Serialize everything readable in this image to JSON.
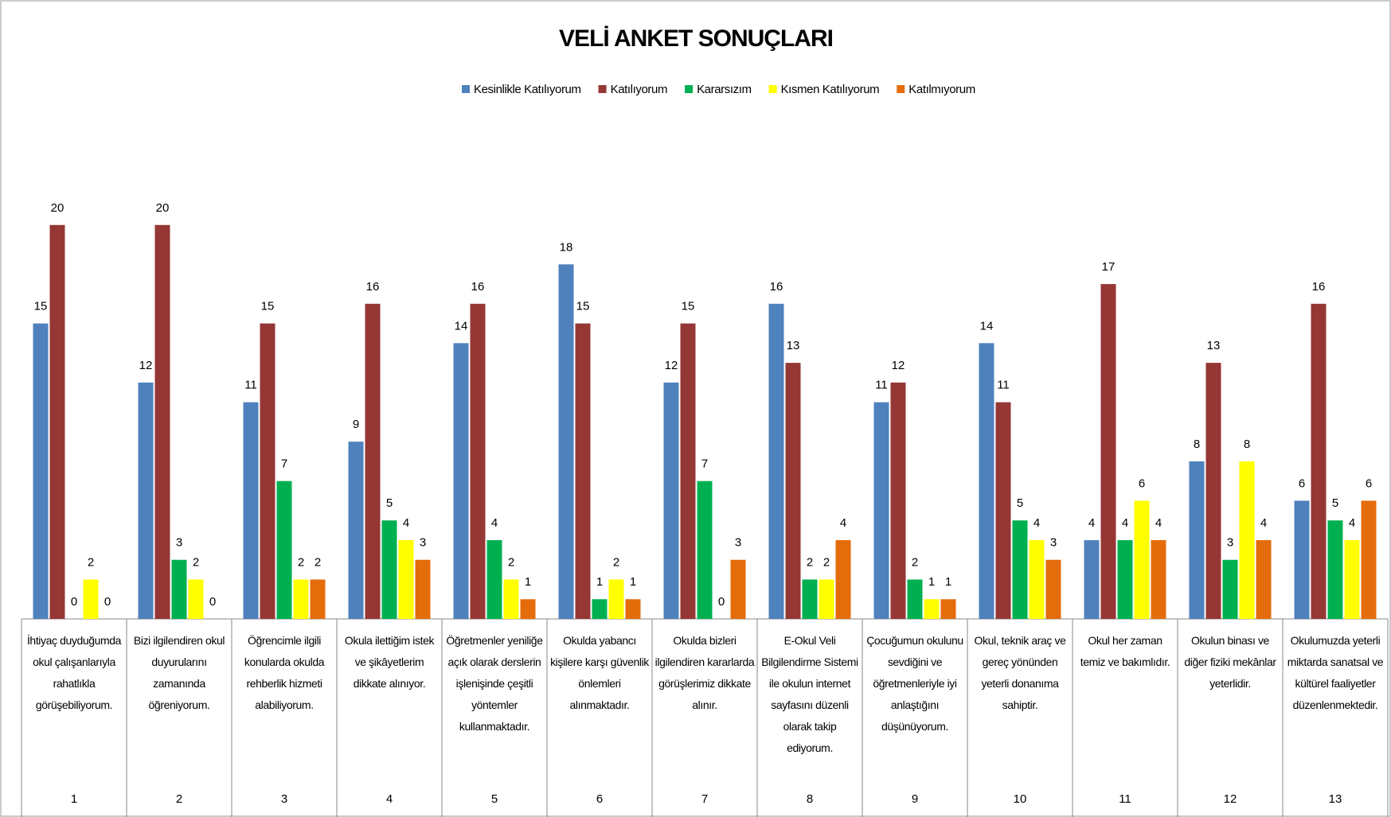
{
  "chart_data": {
    "type": "bar",
    "title": "VELİ ANKET SONUÇLARI",
    "categories": [
      "1",
      "2",
      "3",
      "4",
      "5",
      "6",
      "7",
      "8",
      "9",
      "10",
      "11",
      "12",
      "13"
    ],
    "descriptions": [
      "İhtiyaç duyduğumda okul çalışanlarıyla rahatlıkla görüşebiliyorum.",
      "Bizi ilgilendiren okul duyurularını zamanında öğreniyorum.",
      "Öğrencimle ilgili konularda okulda rehberlik hizmeti alabiliyorum.",
      "Okula ilettiğim istek ve şikâyetlerim dikkate alınıyor.",
      "Öğretmenler yeniliğe açık olarak derslerin işlenişinde çeşitli yöntemler kullanmaktadır.",
      "Okulda yabancı kişilere karşı güvenlik önlemleri alınmaktadır.",
      "Okulda bizleri ilgilendiren kararlarda görüşlerimiz dikkate alınır.",
      "E-Okul Veli Bilgilendirme Sistemi ile okulun internet sayfasını düzenli olarak takip ediyorum.",
      "Çocuğumun okulunu sevdiğini ve öğretmenleriyle iyi anlaştığını düşünüyorum.",
      "Okul, teknik araç ve gereç yönünden yeterli donanıma sahiptir.",
      "Okul her zaman temiz ve bakımlıdır.",
      "Okulun binası ve diğer fiziki mekânlar yeterlidir.",
      "Okulumuzda yeterli miktarda sanatsal ve kültürel faaliyetler düzenlenmektedir."
    ],
    "series": [
      {
        "name": "Kesinlikle Katılıyorum",
        "color": "#4f81bd",
        "values": [
          15,
          12,
          11,
          9,
          14,
          18,
          12,
          16,
          11,
          14,
          4,
          8,
          6
        ]
      },
      {
        "name": "Katılıyorum",
        "color": "#953735",
        "values": [
          20,
          20,
          15,
          16,
          16,
          15,
          15,
          13,
          12,
          11,
          17,
          13,
          16
        ]
      },
      {
        "name": "Kararsızım",
        "color": "#00b050",
        "values": [
          0,
          3,
          7,
          5,
          4,
          1,
          7,
          2,
          2,
          5,
          4,
          3,
          5
        ]
      },
      {
        "name": "Kısmen Katılıyorum",
        "color": "#ffff00",
        "values": [
          2,
          2,
          2,
          4,
          2,
          2,
          0,
          2,
          1,
          4,
          6,
          8,
          4
        ]
      },
      {
        "name": "Katılmıyorum",
        "color": "#e46c0a",
        "values": [
          0,
          0,
          2,
          3,
          1,
          1,
          3,
          4,
          1,
          3,
          4,
          4,
          6
        ]
      }
    ],
    "ylim": [
      0,
      25
    ],
    "legend": "top"
  }
}
